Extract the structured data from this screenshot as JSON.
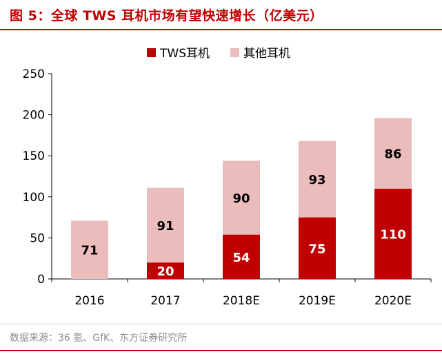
{
  "header": {
    "title": "图 5：全球 TWS 耳机市场有望快速增长（亿美元）"
  },
  "footer": {
    "source": "数据来源：36 氪、GfK、东方证券研究所"
  },
  "chart_data": {
    "type": "bar",
    "stacked": true,
    "categories": [
      "2016",
      "2017",
      "2018E",
      "2019E",
      "2020E"
    ],
    "series": [
      {
        "name": "TWS耳机",
        "values": [
          0,
          20,
          54,
          75,
          110
        ],
        "color": "#c00000",
        "label_color": "#ffffff"
      },
      {
        "name": "其他耳机",
        "values": [
          71,
          91,
          90,
          93,
          86
        ],
        "color": "#ebbcbc",
        "label_color": "#000000"
      }
    ],
    "ylim": [
      0,
      250
    ],
    "yticks": [
      0,
      50,
      100,
      150,
      200,
      250
    ],
    "grid": false,
    "legend": "top-center",
    "xlabel": "",
    "ylabel": ""
  }
}
